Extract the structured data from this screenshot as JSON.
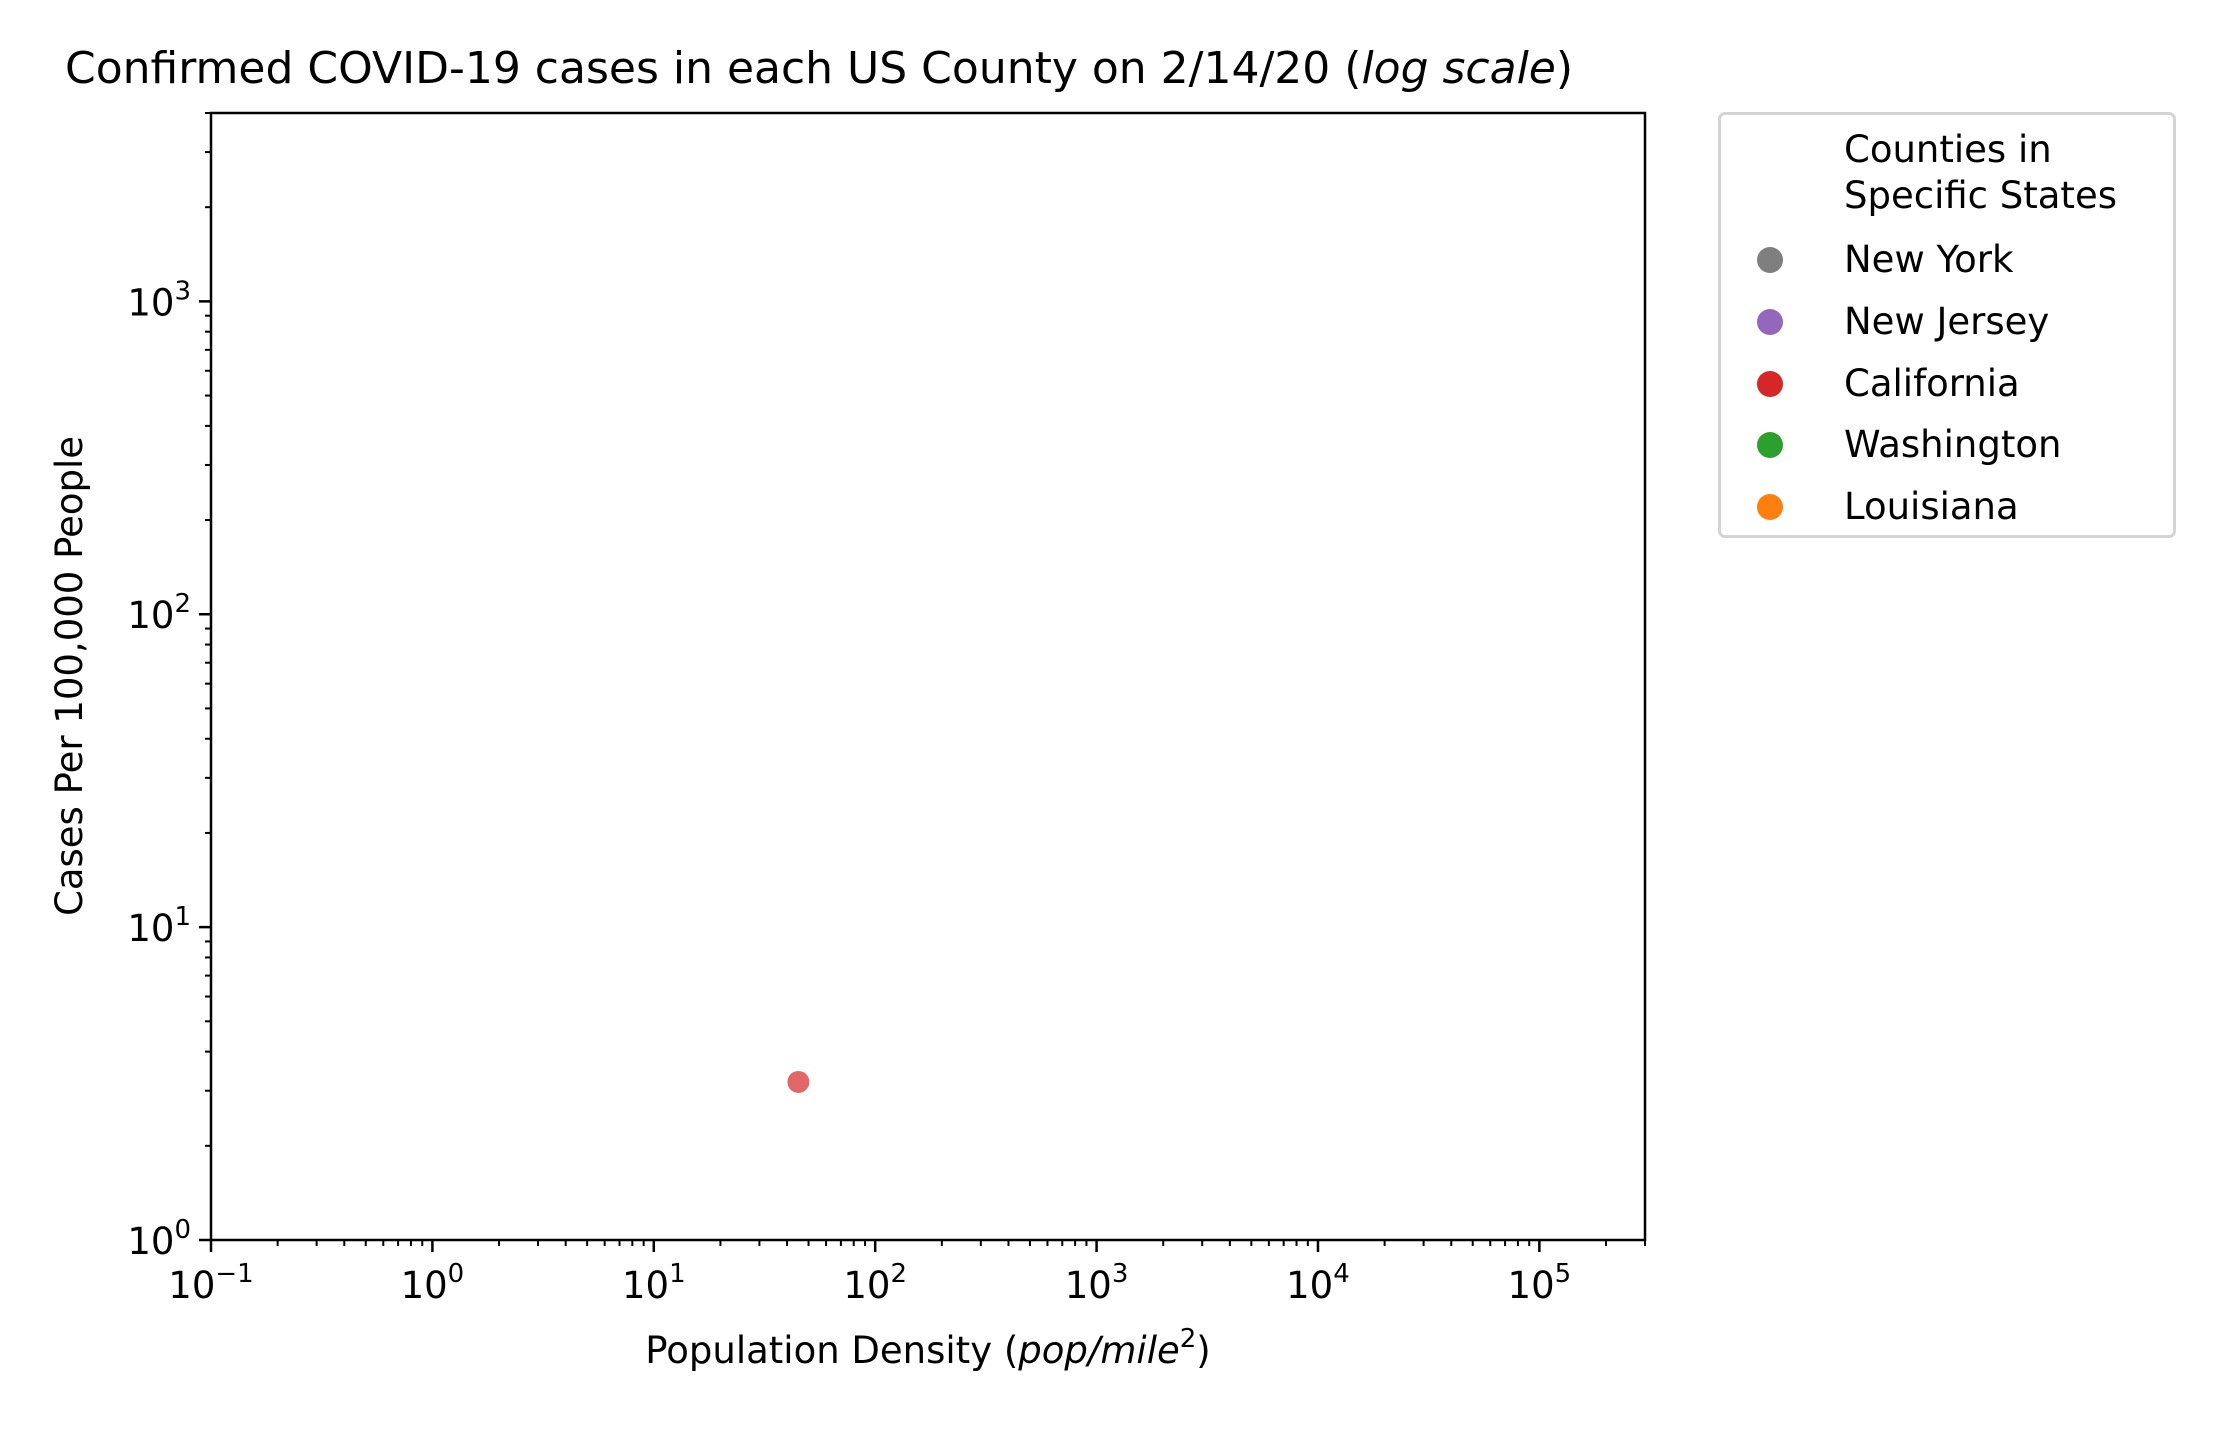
{
  "chart_data": {
    "type": "scatter",
    "title": {
      "prefix": "Confirmed COVID-19 cases in each US County on 2/14/20 (",
      "italic": "log scale",
      "suffix": ")"
    },
    "xlabel": {
      "prefix": "Population Density (",
      "italic": "pop/mile",
      "sup": "2",
      "suffix": ")"
    },
    "ylabel": "Cases Per 100,000 People",
    "x_scale": "log",
    "y_scale": "log",
    "xlim": [
      0.1,
      300000
    ],
    "ylim": [
      1,
      4000
    ],
    "x_ticks": [
      {
        "value": 0.1,
        "base": "10",
        "exp": "−1"
      },
      {
        "value": 1,
        "base": "10",
        "exp": "0"
      },
      {
        "value": 10,
        "base": "10",
        "exp": "1"
      },
      {
        "value": 100,
        "base": "10",
        "exp": "2"
      },
      {
        "value": 1000,
        "base": "10",
        "exp": "3"
      },
      {
        "value": 10000,
        "base": "10",
        "exp": "4"
      },
      {
        "value": 100000,
        "base": "10",
        "exp": "5"
      }
    ],
    "y_ticks": [
      {
        "value": 1,
        "base": "10",
        "exp": "0"
      },
      {
        "value": 10,
        "base": "10",
        "exp": "1"
      },
      {
        "value": 100,
        "base": "10",
        "exp": "2"
      },
      {
        "value": 1000,
        "base": "10",
        "exp": "3"
      }
    ],
    "grid": false,
    "legend": {
      "placement": "outside-top-right",
      "title_lines": [
        "Counties in",
        "Specific States"
      ],
      "entries": [
        {
          "name": "New York",
          "color": "#7f7f7f"
        },
        {
          "name": "New Jersey",
          "color": "#9467bd"
        },
        {
          "name": "California",
          "color": "#d62728"
        },
        {
          "name": "Washington",
          "color": "#2ca02c"
        },
        {
          "name": "Louisiana",
          "color": "#ff7f0e"
        }
      ]
    },
    "points": [
      {
        "series": "California",
        "x": 45,
        "y": 3.2,
        "color": "#d62728"
      }
    ]
  }
}
